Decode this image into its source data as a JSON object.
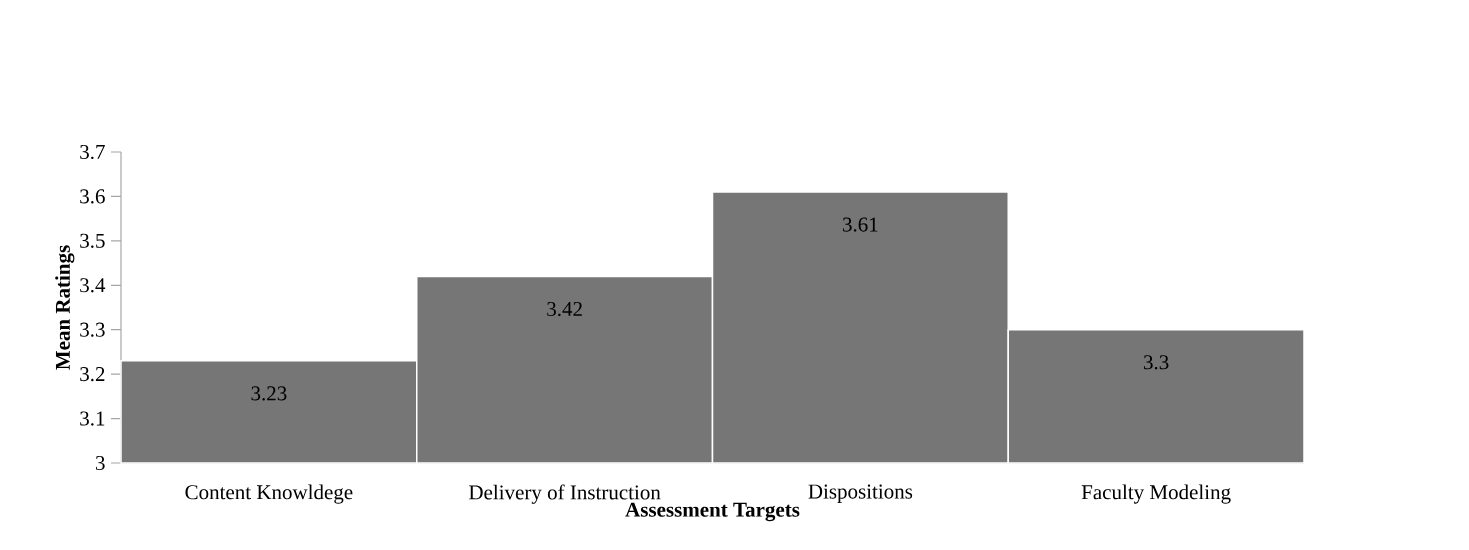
{
  "chart_data": {
    "type": "bar",
    "xlabel": "Assessment Targets",
    "ylabel": "Mean Ratings",
    "categories": [
      "Content Knowldege",
      "Delivery of Instruction",
      "Dispositions",
      "Faculty Modeling"
    ],
    "values": [
      3.23,
      3.42,
      3.61,
      3.3
    ],
    "color": "#767676",
    "data_labels": true,
    "ylim": [
      3,
      3.7
    ],
    "yticks": [
      3,
      3.1,
      3.2,
      3.3,
      3.4,
      3.5,
      3.6,
      3.7
    ],
    "grid": false
  }
}
